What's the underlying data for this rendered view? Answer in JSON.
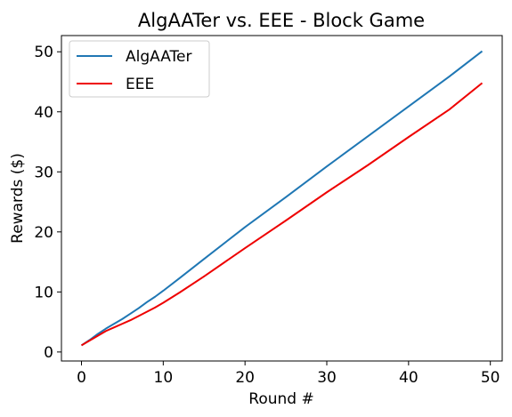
{
  "chart_data": {
    "type": "line",
    "title": "AlgAATer vs. EEE - Block Game",
    "xlabel": "Round #",
    "ylabel": "Rewards ($)",
    "xlim": [
      -2.45,
      51.45
    ],
    "ylim": [
      -1.5,
      52.7
    ],
    "xticks": [
      0,
      10,
      20,
      30,
      40,
      50
    ],
    "yticks": [
      0,
      10,
      20,
      30,
      40,
      50
    ],
    "grid": false,
    "legend_position": "top-left",
    "series": [
      {
        "name": "AlgAATer",
        "color": "#1f77b4",
        "x": [
          0,
          1,
          2,
          3,
          4,
          5,
          6,
          7,
          8,
          9,
          10,
          12,
          15,
          20,
          25,
          30,
          35,
          40,
          45,
          49
        ],
        "y": [
          1.1,
          2.0,
          3.0,
          3.9,
          4.7,
          5.5,
          6.4,
          7.3,
          8.3,
          9.2,
          10.2,
          12.3,
          15.5,
          20.8,
          25.8,
          30.9,
          35.9,
          40.9,
          45.9,
          50.1
        ]
      },
      {
        "name": "EEE",
        "color": "#ee0000",
        "x": [
          0,
          1,
          2,
          3,
          4,
          5,
          6,
          7,
          8,
          9,
          10,
          12,
          15,
          20,
          25,
          30,
          35,
          40,
          45,
          49
        ],
        "y": [
          1.1,
          1.9,
          2.7,
          3.5,
          4.1,
          4.7,
          5.3,
          6.0,
          6.7,
          7.4,
          8.2,
          9.9,
          12.6,
          17.3,
          21.9,
          26.6,
          31.1,
          35.8,
          40.4,
          44.8
        ]
      }
    ]
  }
}
